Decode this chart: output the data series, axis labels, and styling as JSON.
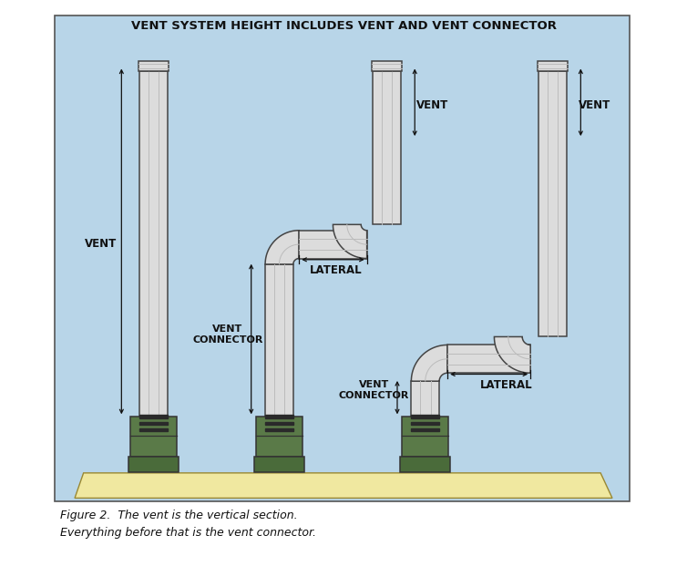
{
  "title": "VENT SYSTEM HEIGHT INCLUDES VENT AND VENT CONNECTOR",
  "caption": "Figure 2.  The vent is the vertical section.\nEverything before that is the vent connector.",
  "diagram_bg": "#b8d5e8",
  "pipe_fill": "#dcdcdc",
  "pipe_edge": "#444444",
  "pipe_inner": "#bbbbbb",
  "furnace_dark": "#4a6b3a",
  "furnace_mid": "#5a7a48",
  "floor_color": "#f0e8a0",
  "text_color": "#111111",
  "label_fontsize": 8.5,
  "title_fontsize": 9.5,
  "caption_fontsize": 9
}
